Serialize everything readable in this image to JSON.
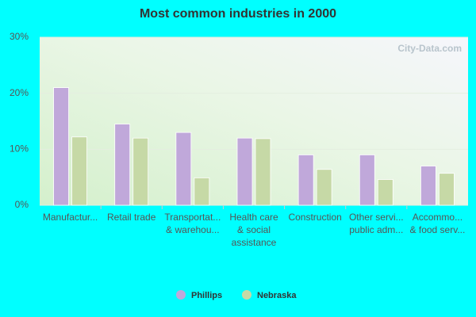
{
  "chart_data": {
    "type": "bar",
    "title": "Most common industries in 2000",
    "watermark": "City-Data.com",
    "categories": [
      [
        "Manufactur..."
      ],
      [
        "Retail trade"
      ],
      [
        "Transportat...",
        "& warehou..."
      ],
      [
        "Health care",
        "& social",
        "assistance"
      ],
      [
        "Construction"
      ],
      [
        "Other servi...",
        "public adm..."
      ],
      [
        "Accommo...",
        "& food serv..."
      ]
    ],
    "series": [
      {
        "name": "Phillips",
        "color": "#c0a8da",
        "values": [
          21,
          14.5,
          13,
          12,
          9,
          9,
          7
        ]
      },
      {
        "name": "Nebraska",
        "color": "#c6d9a6",
        "values": [
          12.2,
          12,
          4.9,
          11.9,
          6.4,
          4.6,
          5.7
        ]
      }
    ],
    "ylim": [
      0,
      30
    ],
    "yticks": [
      {
        "value": 0,
        "label": "0%"
      },
      {
        "value": 10,
        "label": "10%"
      },
      {
        "value": 20,
        "label": "20%"
      },
      {
        "value": 30,
        "label": "30%"
      }
    ],
    "grid": true
  }
}
